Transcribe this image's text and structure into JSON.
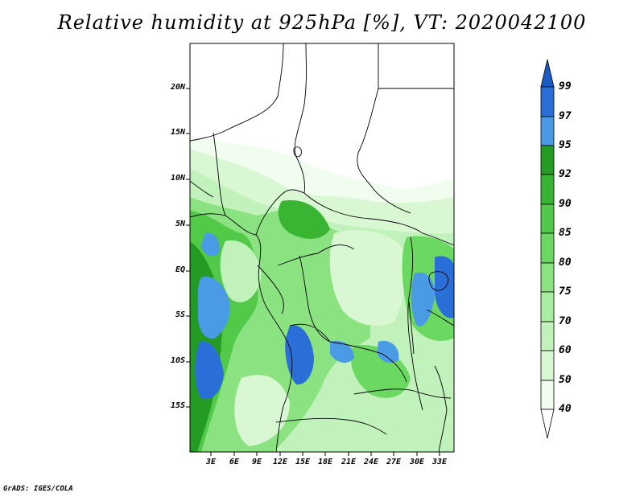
{
  "title": "Relative humidity at 925hPa [%], VT: 2020042100",
  "credit": "GrADS: IGES/COLA",
  "lat_labels": [
    "20N",
    "15N",
    "10N",
    "5N",
    "EQ",
    "5S",
    "10S",
    "15S"
  ],
  "lon_labels": [
    "3E",
    "6E",
    "9E",
    "12E",
    "15E",
    "18E",
    "21E",
    "24E",
    "27E",
    "30E",
    "33E"
  ],
  "colorbar": {
    "labels": [
      "99",
      "97",
      "95",
      "92",
      "90",
      "85",
      "80",
      "75",
      "70",
      "60",
      "50",
      "40"
    ],
    "colors": {
      "c40": "#f1fdef",
      "c50": "#d9f7d3",
      "c60": "#c2f2bb",
      "c70": "#a8ec9f",
      "c75": "#8ae380",
      "c80": "#6bd961",
      "c85": "#52c948",
      "c90": "#3ab433",
      "c92": "#249b22",
      "c95": "#4a9ae6",
      "c97": "#2a6ed8",
      "c99": "#1a5cc4"
    }
  }
}
